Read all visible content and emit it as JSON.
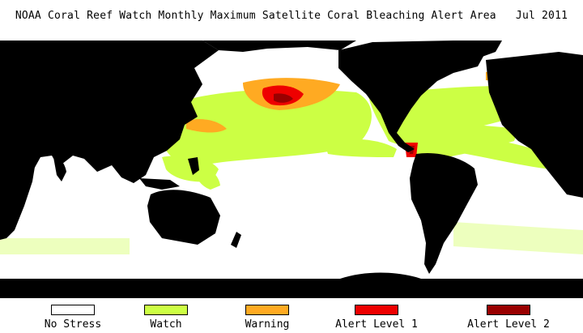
{
  "title": "NOAA Coral Reef Watch Monthly Maximum Satellite Coral Bleaching Alert Area",
  "date": "Jul 2011",
  "colors": {
    "land": "#000000",
    "ocean": "#ffffff",
    "no_stress": "#ffffff",
    "watch": "#ccff44",
    "warning": "#ffaa22",
    "alert1": "#ee0000",
    "alert2": "#990000"
  },
  "legend": [
    {
      "label": "No Stress",
      "color": "#ffffff"
    },
    {
      "label": "Watch",
      "color": "#ccff44"
    },
    {
      "label": "Warning",
      "color": "#ffaa22"
    },
    {
      "label": "Alert Level 1",
      "color": "#ee0000"
    },
    {
      "label": "Alert Level 2",
      "color": "#990000"
    }
  ]
}
